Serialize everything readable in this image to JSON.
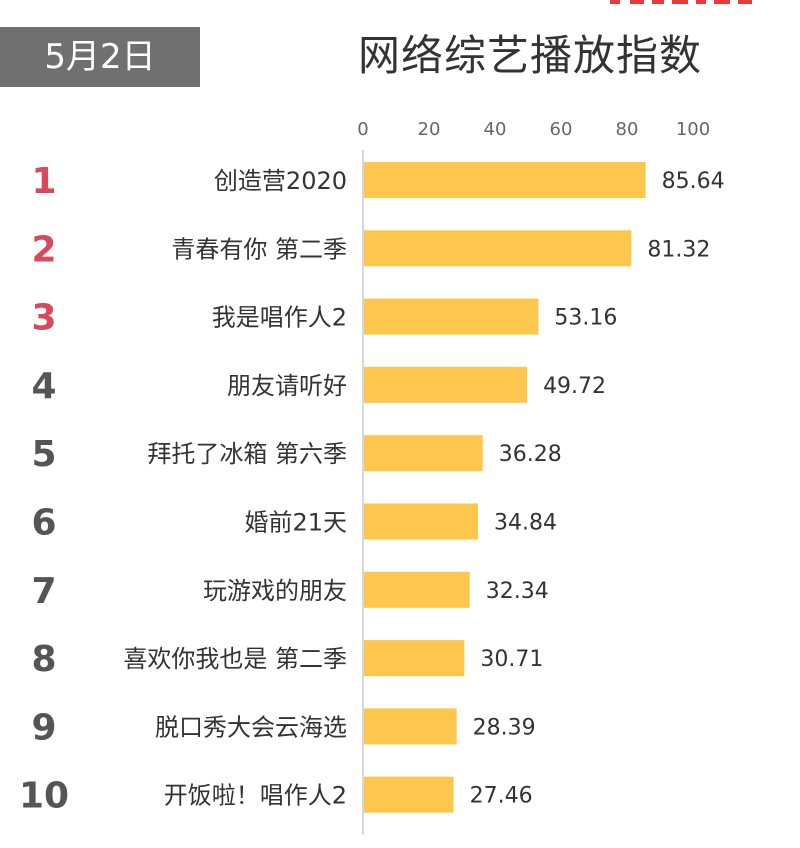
{
  "header": {
    "date": "5月2日",
    "title": "网络综艺播放指数"
  },
  "colors": {
    "bar": "#FDC64C",
    "rank_top": "#D8495B",
    "rank_other": "#555555",
    "date_badge_bg": "#707070",
    "corner_mark": "#E83C3C"
  },
  "chart_data": {
    "type": "bar",
    "orientation": "horizontal",
    "title": "网络综艺播放指数",
    "xlim": [
      0,
      100
    ],
    "xticks": [
      "0",
      "20",
      "40",
      "60",
      "80",
      "100"
    ],
    "categories": [
      "创造营2020",
      "青春有你 第二季",
      "我是唱作人2",
      "朋友请听好",
      "拜托了冰箱 第六季",
      "婚前21天",
      "玩游戏的朋友",
      "喜欢你我也是 第二季",
      "脱口秀大会云海选",
      "开饭啦！唱作人2"
    ],
    "ranks": [
      "1",
      "2",
      "3",
      "4",
      "5",
      "6",
      "7",
      "8",
      "9",
      "10"
    ],
    "values": [
      85.64,
      81.32,
      53.16,
      49.72,
      36.28,
      34.84,
      32.34,
      30.71,
      28.39,
      27.46
    ],
    "value_labels": [
      "85.64",
      "81.32",
      "53.16",
      "49.72",
      "36.28",
      "34.84",
      "32.34",
      "30.71",
      "28.39",
      "27.46"
    ],
    "legend": "none",
    "grid": false
  }
}
